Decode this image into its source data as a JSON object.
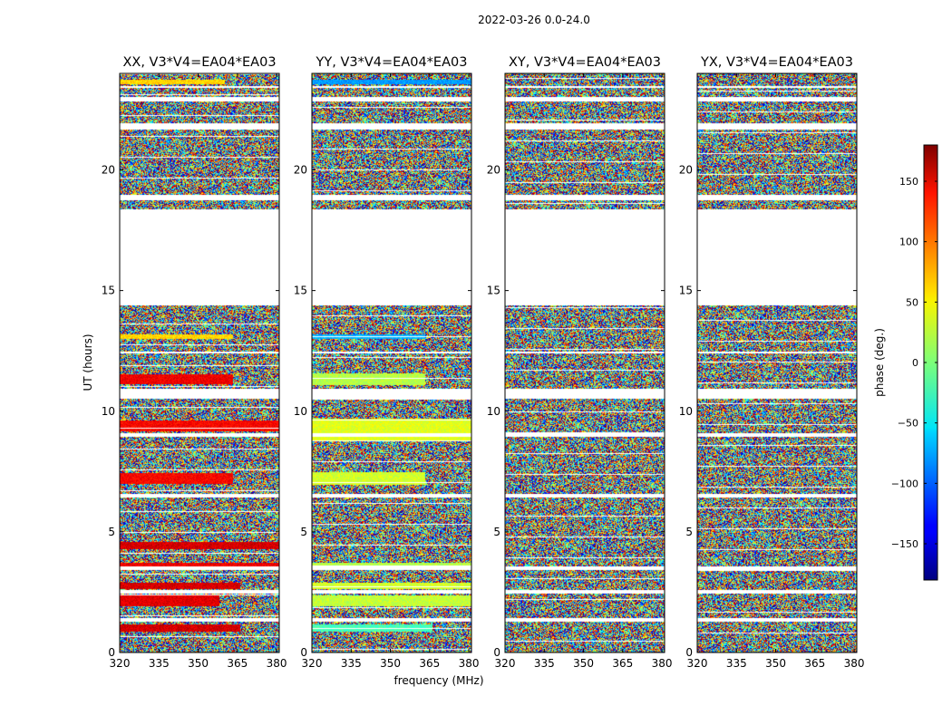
{
  "figure": {
    "suptitle": "2022-03-26 0.0-24.0",
    "ylabel": "UT (hours)",
    "xlabel": "frequency (MHz)"
  },
  "chart_data": {
    "type": "heatmap",
    "panels": [
      {
        "title": "XX, V3*V4=EA04*EA03",
        "pol": "XX"
      },
      {
        "title": "YY, V3*V4=EA04*EA03",
        "pol": "YY"
      },
      {
        "title": "XY, V3*V4=EA04*EA03",
        "pol": "XY"
      },
      {
        "title": "YX, V3*V4=EA04*EA03",
        "pol": "YX"
      }
    ],
    "xlim": [
      320,
      381
    ],
    "xticks": [
      320,
      335,
      350,
      365,
      380
    ],
    "xtick_labels": [
      "320",
      "335",
      "350",
      "365",
      "380"
    ],
    "ylim": [
      0,
      24
    ],
    "yticks": [
      0,
      5,
      10,
      15,
      20
    ],
    "ytick_labels": [
      "0",
      "5",
      "10",
      "15",
      "20"
    ],
    "colorbar": {
      "label": "phase (deg.)",
      "range": [
        -180,
        180
      ],
      "ticks": [
        -150,
        -100,
        -50,
        0,
        50,
        100,
        150
      ],
      "tick_labels": [
        "−150",
        "−100",
        "−50",
        "0",
        "50",
        "100",
        "150"
      ],
      "colormap": "jet"
    },
    "flagged_ut_ranges": [
      [
        14.4,
        18.4
      ],
      [
        10.55,
        10.95
      ],
      [
        18.75,
        19.0
      ],
      [
        21.7,
        21.95
      ],
      [
        22.85,
        23.05
      ],
      [
        1.3,
        1.45
      ],
      [
        2.45,
        2.6
      ],
      [
        3.45,
        3.6
      ],
      [
        6.45,
        6.6
      ],
      [
        8.95,
        9.1
      ],
      [
        12.4,
        12.5
      ],
      [
        23.4,
        23.5
      ]
    ],
    "solid_bands": {
      "XX": [
        {
          "ut": [
            0.9,
            1.2
          ],
          "phase": 150,
          "fmax": 366
        },
        {
          "ut": [
            1.95,
            2.4
          ],
          "phase": 145,
          "fmax": 358
        },
        {
          "ut": [
            2.65,
            2.9
          ],
          "phase": 150,
          "fmax": 366
        },
        {
          "ut": [
            3.6,
            3.75
          ],
          "phase": 140,
          "fmax": 381
        },
        {
          "ut": [
            4.3,
            4.6
          ],
          "phase": 150,
          "fmax": 381
        },
        {
          "ut": [
            7.0,
            7.45
          ],
          "phase": 135,
          "fmax": 363
        },
        {
          "ut": [
            9.2,
            9.65
          ],
          "phase": 135,
          "fmax": 381
        },
        {
          "ut": [
            11.15,
            11.55
          ],
          "phase": 140,
          "fmax": 363
        },
        {
          "ut": [
            13.0,
            13.2
          ],
          "phase": 60,
          "fmax": 363
        },
        {
          "ut": [
            23.55,
            23.75
          ],
          "phase": 60,
          "fmax": 360
        }
      ],
      "YY": [
        {
          "ut": [
            0.9,
            1.2
          ],
          "phase": -20,
          "fmax": 366
        },
        {
          "ut": [
            1.95,
            2.4
          ],
          "phase": 25,
          "fmax": 381
        },
        {
          "ut": [
            2.65,
            2.9
          ],
          "phase": 30,
          "fmax": 381
        },
        {
          "ut": [
            3.6,
            3.75
          ],
          "phase": 20,
          "fmax": 381
        },
        {
          "ut": [
            6.95,
            7.5
          ],
          "phase": 30,
          "fmax": 363
        },
        {
          "ut": [
            8.8,
            9.7
          ],
          "phase": 35,
          "fmax": 381
        },
        {
          "ut": [
            11.1,
            11.6
          ],
          "phase": 20,
          "fmax": 363
        },
        {
          "ut": [
            13.0,
            13.2
          ],
          "phase": -70,
          "fmax": 363
        },
        {
          "ut": [
            23.55,
            23.75
          ],
          "phase": -80,
          "fmax": 381
        }
      ],
      "XY": [],
      "YX": []
    }
  }
}
